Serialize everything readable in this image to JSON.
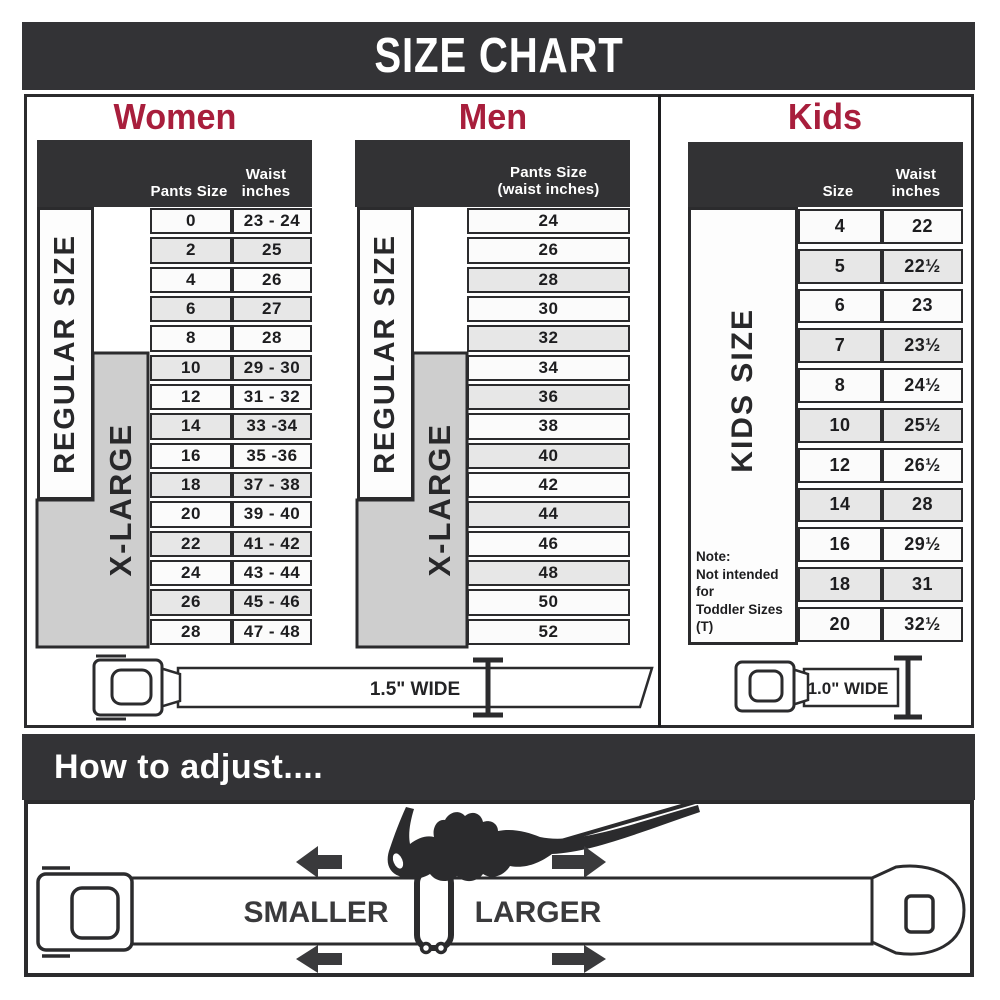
{
  "title": "SIZE CHART",
  "colors": {
    "dark_banner": "#333336",
    "heading_accent": "#a81e3c",
    "row_gray": "#e7e7e7",
    "row_white": "#fbfbfb",
    "xlarge_gray": "#cecece",
    "line_dark": "#2b2b2d"
  },
  "women": {
    "heading": "Women",
    "col1": "Pants Size",
    "col2": "Waist inches",
    "regular_label": "REGULAR SIZE",
    "xlarge_label": "X-LARGE",
    "rows": [
      {
        "size": "0",
        "waist": "23 - 24"
      },
      {
        "size": "2",
        "waist": "25"
      },
      {
        "size": "4",
        "waist": "26"
      },
      {
        "size": "6",
        "waist": "27"
      },
      {
        "size": "8",
        "waist": "28"
      },
      {
        "size": "10",
        "waist": "29 - 30"
      },
      {
        "size": "12",
        "waist": "31 - 32"
      },
      {
        "size": "14",
        "waist": "33 -34"
      },
      {
        "size": "16",
        "waist": "35 -36"
      },
      {
        "size": "18",
        "waist": "37 - 38"
      },
      {
        "size": "20",
        "waist": "39 - 40"
      },
      {
        "size": "22",
        "waist": "41 - 42"
      },
      {
        "size": "24",
        "waist": "43 - 44"
      },
      {
        "size": "26",
        "waist": "45 - 46"
      },
      {
        "size": "28",
        "waist": "47 - 48"
      }
    ]
  },
  "men": {
    "heading": "Men",
    "header_line1": "Pants Size",
    "header_line2": "(waist inches)",
    "regular_label": "REGULAR SIZE",
    "xlarge_label": "X-LARGE",
    "sizes": [
      "24",
      "26",
      "28",
      "30",
      "32",
      "34",
      "36",
      "38",
      "40",
      "42",
      "44",
      "46",
      "48",
      "50",
      "52"
    ]
  },
  "kids": {
    "heading": "Kids",
    "col1": "Size",
    "col2": "Waist inches",
    "label": "KIDS SIZE",
    "note": [
      "Note:",
      "Not intended for",
      "Toddler Sizes (T)"
    ],
    "rows": [
      {
        "size": "4",
        "waist": "22"
      },
      {
        "size": "5",
        "waist": "22½"
      },
      {
        "size": "6",
        "waist": "23"
      },
      {
        "size": "7",
        "waist": "23½"
      },
      {
        "size": "8",
        "waist": "24½"
      },
      {
        "size": "10",
        "waist": "25½"
      },
      {
        "size": "12",
        "waist": "26½"
      },
      {
        "size": "14",
        "waist": "28"
      },
      {
        "size": "16",
        "waist": "29½"
      },
      {
        "size": "18",
        "waist": "31"
      },
      {
        "size": "20",
        "waist": "32½"
      }
    ]
  },
  "belts": {
    "adult_width_label": "1.5\" WIDE",
    "kids_width_label": "1.0\" WIDE"
  },
  "adjust": {
    "heading": "How to adjust....",
    "smaller": "SMALLER",
    "larger": "LARGER"
  },
  "chart_data": [
    {
      "type": "table",
      "title": "Women",
      "columns": [
        "Pants Size",
        "Waist inches"
      ],
      "rows": [
        [
          "0",
          "23 - 24"
        ],
        [
          "2",
          "25"
        ],
        [
          "4",
          "26"
        ],
        [
          "6",
          "27"
        ],
        [
          "8",
          "28"
        ],
        [
          "10",
          "29 - 30"
        ],
        [
          "12",
          "31 - 32"
        ],
        [
          "14",
          "33 -34"
        ],
        [
          "16",
          "35 -36"
        ],
        [
          "18",
          "37 - 38"
        ],
        [
          "20",
          "39 - 40"
        ],
        [
          "22",
          "41 - 42"
        ],
        [
          "24",
          "43 - 44"
        ],
        [
          "26",
          "45 - 46"
        ],
        [
          "28",
          "47 - 48"
        ]
      ],
      "groups": [
        {
          "label": "REGULAR SIZE",
          "sizes": "0-18"
        },
        {
          "label": "X-LARGE",
          "sizes": "10-28"
        }
      ],
      "belt_width": "1.5\" WIDE"
    },
    {
      "type": "table",
      "title": "Men",
      "columns": [
        "Pants Size (waist inches)"
      ],
      "rows": [
        [
          "24"
        ],
        [
          "26"
        ],
        [
          "28"
        ],
        [
          "30"
        ],
        [
          "32"
        ],
        [
          "34"
        ],
        [
          "36"
        ],
        [
          "38"
        ],
        [
          "40"
        ],
        [
          "42"
        ],
        [
          "44"
        ],
        [
          "46"
        ],
        [
          "48"
        ],
        [
          "50"
        ],
        [
          "52"
        ]
      ],
      "groups": [
        {
          "label": "REGULAR SIZE",
          "sizes": "24-42"
        },
        {
          "label": "X-LARGE",
          "sizes": "34-52"
        }
      ],
      "belt_width": "1.5\" WIDE"
    },
    {
      "type": "table",
      "title": "Kids",
      "columns": [
        "Size",
        "Waist inches"
      ],
      "rows": [
        [
          "4",
          "22"
        ],
        [
          "5",
          "22½"
        ],
        [
          "6",
          "23"
        ],
        [
          "7",
          "23½"
        ],
        [
          "8",
          "24½"
        ],
        [
          "10",
          "25½"
        ],
        [
          "12",
          "26½"
        ],
        [
          "14",
          "28"
        ],
        [
          "16",
          "29½"
        ],
        [
          "18",
          "31"
        ],
        [
          "20",
          "32½"
        ]
      ],
      "groups": [
        {
          "label": "KIDS SIZE",
          "sizes": "4-20"
        }
      ],
      "note": "Note: Not intended for Toddler Sizes (T)",
      "belt_width": "1.0\" WIDE"
    }
  ]
}
